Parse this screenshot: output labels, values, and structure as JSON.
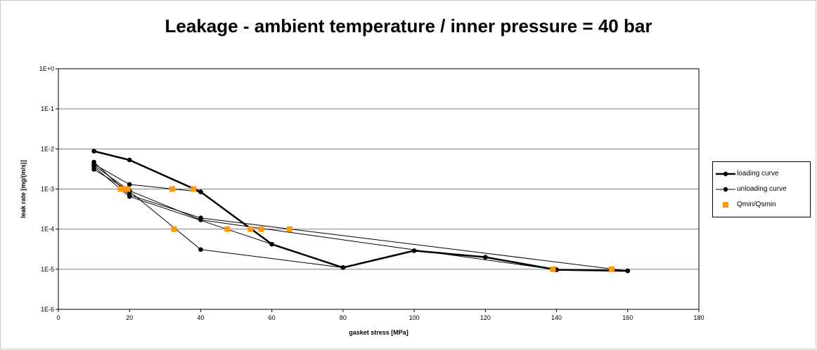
{
  "chart_data": {
    "type": "line",
    "title": "Leakage - ambient temperature / inner pressure = 40 bar",
    "xlabel": "gasket stress [MPa]",
    "ylabel": "leak rate [mg/(m/s)]",
    "xlim": [
      0,
      180
    ],
    "ylim": [
      1e-06,
      1
    ],
    "yscale": "log",
    "x_ticks": [
      0,
      20,
      40,
      60,
      80,
      100,
      120,
      140,
      160,
      180
    ],
    "x_tick_labels": [
      "0",
      "20",
      "40",
      "60",
      "80",
      "100",
      "120",
      "140",
      "160",
      "180"
    ],
    "y_ticks": [
      1e-06,
      1e-05,
      0.0001,
      0.001,
      0.01,
      0.1,
      1
    ],
    "y_tick_labels": [
      "1E-6",
      "1E-5",
      "1E-4",
      "1E-3",
      "1E-2",
      "1E-1",
      "1E+0"
    ],
    "grid": "horizontal",
    "legend_position": "right",
    "series": [
      {
        "name": "loading curve",
        "style": "thick-line-circle",
        "color": "#000000",
        "points": [
          [
            10,
            0.0088
          ],
          [
            20,
            0.0053
          ],
          [
            40,
            0.00085
          ],
          [
            60,
            4.2e-05
          ],
          [
            80,
            1.1e-05
          ],
          [
            100,
            2.9e-05
          ],
          [
            120,
            2e-05
          ],
          [
            140,
            9.7e-06
          ],
          [
            160,
            9.1e-06
          ]
        ]
      },
      {
        "name": "unloading curve",
        "style": "thin-line-circle",
        "color": "#000000",
        "segments": [
          [
            [
              160,
              9.1e-06
            ],
            [
              40,
              0.00019
            ],
            [
              20,
              0.00071
            ],
            [
              10,
              0.0047
            ]
          ],
          [
            [
              140,
              9.7e-06
            ],
            [
              40,
              0.00017
            ],
            [
              20,
              0.00091
            ],
            [
              10,
              0.0039
            ]
          ],
          [
            [
              80,
              1.1e-05
            ],
            [
              40,
              3.1e-05
            ],
            [
              20,
              0.00088
            ],
            [
              10,
              0.0031
            ]
          ],
          [
            [
              60,
              4.2e-05
            ],
            [
              20,
              0.00065
            ],
            [
              10,
              0.0036
            ]
          ],
          [
            [
              40,
              0.00085
            ],
            [
              20,
              0.0013
            ],
            [
              10,
              0.0042
            ]
          ]
        ]
      },
      {
        "name": "Qmin/Qsmin",
        "style": "square-marker",
        "color": "#ff9900",
        "points": [
          [
            17.5,
            0.001
          ],
          [
            18.5,
            0.001
          ],
          [
            19.5,
            0.001
          ],
          [
            32,
            0.001
          ],
          [
            38,
            0.001
          ],
          [
            32.5,
            0.0001
          ],
          [
            47.5,
            0.0001
          ],
          [
            54,
            0.0001
          ],
          [
            57,
            0.0001
          ],
          [
            65,
            0.0001
          ],
          [
            139,
            1e-05
          ],
          [
            155.5,
            1e-05
          ]
        ]
      }
    ]
  }
}
